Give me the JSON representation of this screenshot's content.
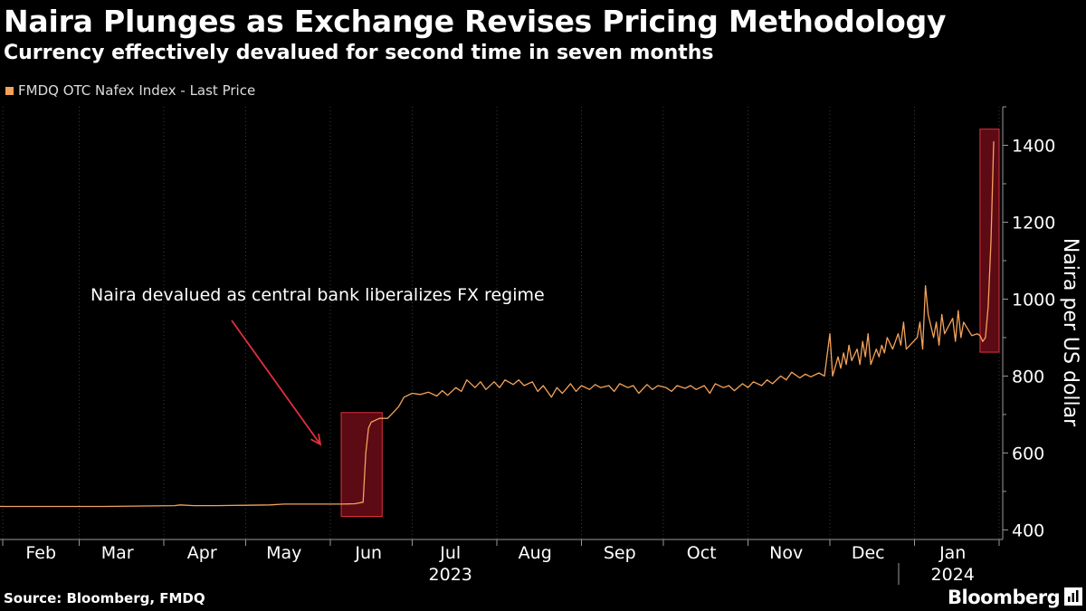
{
  "header": {
    "title": "Naira Plunges as Exchange Revises Pricing Methodology",
    "subtitle": "Currency effectively devalued for second time in seven months"
  },
  "footer": {
    "source": "Source: Bloomberg, FMDQ",
    "brand": "Bloomberg",
    "brand_icon": "bloomberg-terminal-icon"
  },
  "colors": {
    "background": "#000000",
    "line": "#f5a35a",
    "highlight_fill": "#5c0a14",
    "highlight_stroke": "#e0303c",
    "annotation_arrow": "#e0303c",
    "grid": "#3a3a3a",
    "text": "#ffffff"
  },
  "chart_data": {
    "type": "line",
    "title": "Naira Plunges as Exchange Revises Pricing Methodology",
    "subtitle": "Currency effectively devalued for second time in seven months",
    "ylabel": "Naira per US dollar",
    "xlabel": "",
    "ylim": [
      375,
      1500
    ],
    "y_ticks": [
      400,
      600,
      800,
      1000,
      1200,
      1400
    ],
    "x_range": [
      "2023-01-31",
      "2024-02-01"
    ],
    "x_ticks": [
      {
        "date": "2023-02-15",
        "label": "Feb"
      },
      {
        "date": "2023-03-15",
        "label": "Mar"
      },
      {
        "date": "2023-04-15",
        "label": "Apr"
      },
      {
        "date": "2023-05-15",
        "label": "May"
      },
      {
        "date": "2023-06-15",
        "label": "Jun"
      },
      {
        "date": "2023-07-15",
        "label": "Jul"
      },
      {
        "date": "2023-08-15",
        "label": "Aug"
      },
      {
        "date": "2023-09-15",
        "label": "Sep"
      },
      {
        "date": "2023-10-15",
        "label": "Oct"
      },
      {
        "date": "2023-11-15",
        "label": "Nov"
      },
      {
        "date": "2023-12-15",
        "label": "Dec"
      },
      {
        "date": "2024-01-15",
        "label": "Jan"
      }
    ],
    "year_labels": [
      {
        "date": "2023-07-15",
        "label": "2023"
      },
      {
        "date": "2024-01-15",
        "label": "2024"
      }
    ],
    "grid": "vertical",
    "legend_position": "top-left",
    "series": [
      {
        "name": "FMDQ OTC Nafex Index - Last Price",
        "points": [
          [
            "2023-01-31",
            461
          ],
          [
            "2023-02-10",
            461
          ],
          [
            "2023-02-24",
            461
          ],
          [
            "2023-03-10",
            461
          ],
          [
            "2023-03-24",
            462
          ],
          [
            "2023-04-05",
            463
          ],
          [
            "2023-04-07",
            465
          ],
          [
            "2023-04-12",
            463
          ],
          [
            "2023-04-20",
            463
          ],
          [
            "2023-05-01",
            464
          ],
          [
            "2023-05-10",
            465
          ],
          [
            "2023-05-15",
            467
          ],
          [
            "2023-05-25",
            467
          ],
          [
            "2023-06-05",
            467
          ],
          [
            "2023-06-10",
            468
          ],
          [
            "2023-06-13",
            472
          ],
          [
            "2023-06-14",
            600
          ],
          [
            "2023-06-15",
            665
          ],
          [
            "2023-06-16",
            680
          ],
          [
            "2023-06-19",
            690
          ],
          [
            "2023-06-22",
            690
          ],
          [
            "2023-06-26",
            720
          ],
          [
            "2023-06-28",
            745
          ],
          [
            "2023-07-01",
            755
          ],
          [
            "2023-07-04",
            752
          ],
          [
            "2023-07-07",
            758
          ],
          [
            "2023-07-10",
            748
          ],
          [
            "2023-07-12",
            762
          ],
          [
            "2023-07-14",
            750
          ],
          [
            "2023-07-17",
            770
          ],
          [
            "2023-07-19",
            760
          ],
          [
            "2023-07-21",
            790
          ],
          [
            "2023-07-24",
            770
          ],
          [
            "2023-07-26",
            785
          ],
          [
            "2023-07-28",
            765
          ],
          [
            "2023-07-31",
            785
          ],
          [
            "2023-08-02",
            770
          ],
          [
            "2023-08-04",
            790
          ],
          [
            "2023-08-07",
            778
          ],
          [
            "2023-08-09",
            790
          ],
          [
            "2023-08-11",
            775
          ],
          [
            "2023-08-14",
            785
          ],
          [
            "2023-08-16",
            760
          ],
          [
            "2023-08-18",
            775
          ],
          [
            "2023-08-21",
            745
          ],
          [
            "2023-08-23",
            770
          ],
          [
            "2023-08-25",
            755
          ],
          [
            "2023-08-28",
            780
          ],
          [
            "2023-08-30",
            760
          ],
          [
            "2023-09-01",
            775
          ],
          [
            "2023-09-04",
            765
          ],
          [
            "2023-09-06",
            778
          ],
          [
            "2023-09-08",
            770
          ],
          [
            "2023-09-11",
            775
          ],
          [
            "2023-09-13",
            760
          ],
          [
            "2023-09-15",
            780
          ],
          [
            "2023-09-18",
            770
          ],
          [
            "2023-09-20",
            775
          ],
          [
            "2023-09-22",
            755
          ],
          [
            "2023-09-25",
            778
          ],
          [
            "2023-09-27",
            765
          ],
          [
            "2023-09-29",
            775
          ],
          [
            "2023-10-02",
            770
          ],
          [
            "2023-10-04",
            760
          ],
          [
            "2023-10-06",
            775
          ],
          [
            "2023-10-09",
            768
          ],
          [
            "2023-10-11",
            775
          ],
          [
            "2023-10-13",
            765
          ],
          [
            "2023-10-16",
            775
          ],
          [
            "2023-10-18",
            755
          ],
          [
            "2023-10-20",
            780
          ],
          [
            "2023-10-23",
            770
          ],
          [
            "2023-10-25",
            775
          ],
          [
            "2023-10-27",
            762
          ],
          [
            "2023-10-30",
            780
          ],
          [
            "2023-11-01",
            770
          ],
          [
            "2023-11-03",
            785
          ],
          [
            "2023-11-06",
            775
          ],
          [
            "2023-11-08",
            790
          ],
          [
            "2023-11-10",
            780
          ],
          [
            "2023-11-13",
            800
          ],
          [
            "2023-11-15",
            790
          ],
          [
            "2023-11-17",
            810
          ],
          [
            "2023-11-20",
            795
          ],
          [
            "2023-11-22",
            805
          ],
          [
            "2023-11-24",
            798
          ],
          [
            "2023-11-27",
            808
          ],
          [
            "2023-11-29",
            800
          ],
          [
            "2023-12-01",
            910
          ],
          [
            "2023-12-02",
            800
          ],
          [
            "2023-12-04",
            850
          ],
          [
            "2023-12-05",
            820
          ],
          [
            "2023-12-06",
            860
          ],
          [
            "2023-12-07",
            830
          ],
          [
            "2023-12-08",
            880
          ],
          [
            "2023-12-09",
            840
          ],
          [
            "2023-12-11",
            870
          ],
          [
            "2023-12-12",
            830
          ],
          [
            "2023-12-13",
            890
          ],
          [
            "2023-12-14",
            850
          ],
          [
            "2023-12-15",
            910
          ],
          [
            "2023-12-16",
            830
          ],
          [
            "2023-12-18",
            870
          ],
          [
            "2023-12-19",
            850
          ],
          [
            "2023-12-20",
            880
          ],
          [
            "2023-12-21",
            860
          ],
          [
            "2023-12-22",
            900
          ],
          [
            "2023-12-24",
            870
          ],
          [
            "2023-12-26",
            910
          ],
          [
            "2023-12-27",
            880
          ],
          [
            "2023-12-28",
            940
          ],
          [
            "2023-12-29",
            870
          ],
          [
            "2024-01-02",
            900
          ],
          [
            "2024-01-03",
            940
          ],
          [
            "2024-01-04",
            870
          ],
          [
            "2024-01-05",
            1035
          ],
          [
            "2024-01-06",
            960
          ],
          [
            "2024-01-08",
            900
          ],
          [
            "2024-01-09",
            940
          ],
          [
            "2024-01-10",
            880
          ],
          [
            "2024-01-11",
            960
          ],
          [
            "2024-01-12",
            910
          ],
          [
            "2024-01-15",
            950
          ],
          [
            "2024-01-16",
            890
          ],
          [
            "2024-01-17",
            970
          ],
          [
            "2024-01-18",
            900
          ],
          [
            "2024-01-19",
            940
          ],
          [
            "2024-01-22",
            905
          ],
          [
            "2024-01-24",
            910
          ],
          [
            "2024-01-25",
            905
          ],
          [
            "2024-01-26",
            890
          ],
          [
            "2024-01-27",
            900
          ],
          [
            "2024-01-28",
            980
          ],
          [
            "2024-01-29",
            1150
          ],
          [
            "2024-01-30",
            1410
          ]
        ]
      }
    ],
    "highlights": [
      {
        "x_from": "2023-06-05",
        "x_to": "2023-06-20",
        "y_from": 435,
        "y_to": 705
      },
      {
        "x_from": "2024-01-25",
        "x_to": "2024-02-01",
        "y_from": 862,
        "y_to": 1442
      }
    ],
    "annotations": [
      {
        "text": "Naira devalued as central bank liberalizes FX regime",
        "arrow_from": {
          "date": "2023-05-20",
          "value": 885
        },
        "arrow_to": {
          "date": "2023-06-02",
          "value": 622
        }
      }
    ]
  }
}
